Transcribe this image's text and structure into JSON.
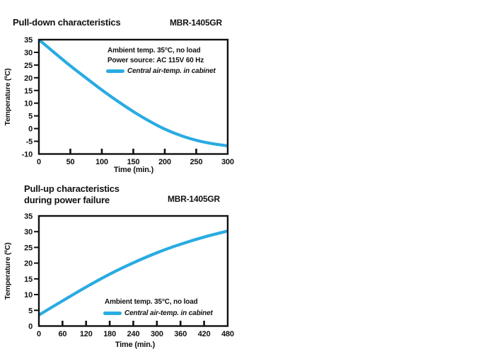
{
  "page": {
    "background": "#ffffff",
    "text_color": "#111111",
    "accent_color": "#29ABE2"
  },
  "chart_data": [
    {
      "type": "line",
      "title": "Pull-down characteristics",
      "title_line2": "",
      "model_label": "MBR-1405GR",
      "xlabel": "Time (min.)",
      "ylabel": "Temperature (ºC)",
      "xlim": [
        0,
        300
      ],
      "ylim": [
        -10,
        35
      ],
      "xticks": [
        0,
        50,
        100,
        150,
        200,
        250,
        300
      ],
      "yticks": [
        -10,
        -5,
        0,
        5,
        10,
        15,
        20,
        25,
        30,
        35
      ],
      "grid": false,
      "legend_position": "upper-right-inside",
      "annotations": [
        "Ambient temp. 35°C, no load",
        "Power source: AC 115V 60 Hz"
      ],
      "legend": [
        {
          "name": "Central air-temp. in cabinet",
          "color": "#29ABE2"
        }
      ],
      "series": [
        {
          "name": "Central air-temp. in cabinet",
          "color": "#29ABE2",
          "x": [
            0,
            25,
            50,
            75,
            100,
            125,
            150,
            175,
            200,
            225,
            250,
            275,
            300
          ],
          "y": [
            35,
            29.8,
            24.7,
            19.9,
            15.2,
            10.8,
            6.7,
            3.0,
            -0.2,
            -2.7,
            -4.6,
            -5.9,
            -6.8
          ]
        }
      ]
    },
    {
      "type": "line",
      "title": "Pull-up characteristics",
      "title_line2": "during power failure",
      "model_label": "MBR-1405GR",
      "xlabel": "Time (min.)",
      "ylabel": "Temperature (ºC)",
      "xlim": [
        0,
        480
      ],
      "ylim": [
        0,
        35
      ],
      "xticks": [
        0,
        60,
        120,
        180,
        240,
        300,
        360,
        420,
        480
      ],
      "yticks": [
        0,
        5,
        10,
        15,
        20,
        25,
        30,
        35
      ],
      "grid": false,
      "legend_position": "lower-right-inside",
      "annotations": [
        "Ambient temp. 35°C, no load"
      ],
      "legend": [
        {
          "name": "Central air-temp. in cabinet",
          "color": "#29ABE2"
        }
      ],
      "series": [
        {
          "name": "Central air-temp. in cabinet",
          "color": "#29ABE2",
          "x": [
            0,
            60,
            120,
            180,
            240,
            300,
            360,
            420,
            480
          ],
          "y": [
            3.5,
            8.0,
            12.4,
            16.5,
            20.1,
            23.3,
            26.0,
            28.3,
            30.2
          ]
        }
      ]
    }
  ]
}
